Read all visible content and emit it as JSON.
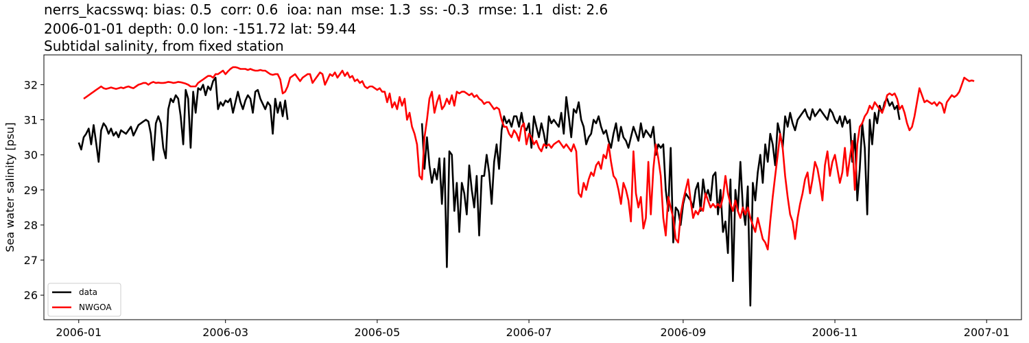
{
  "chart_data": {
    "type": "line",
    "title_lines": [
      "nerrs_kacsswq: bias: 0.5  corr: 0.6  ioa: nan  mse: 1.3  ss: -0.3  rmse: 1.1  dist: 2.6",
      "2006-01-01 depth: 0.0 lon: -151.72 lat: 59.44",
      "Subtidal salinity, from fixed station"
    ],
    "xlabel": "",
    "ylabel": "Sea water salinity [psu]",
    "xlim": [
      "2005-12-18",
      "2007-01-15"
    ],
    "ylim": [
      25.3,
      32.85
    ],
    "x_ticks": [
      "2006-01",
      "2006-03",
      "2006-05",
      "2006-07",
      "2006-09",
      "2006-11",
      "2007-01"
    ],
    "y_ticks": [
      26,
      27,
      28,
      29,
      30,
      31,
      32
    ],
    "grid": false,
    "legend_position": "lower-left",
    "series": [
      {
        "name": "data",
        "color": "#000000",
        "segments": [
          {
            "start": "2006-01-01",
            "values": [
              30.35,
              30.15,
              30.5,
              30.6,
              30.75,
              30.3,
              30.85,
              30.35,
              29.8,
              30.7,
              30.9,
              30.8,
              30.6,
              30.75,
              30.55,
              30.65,
              30.5,
              30.7,
              30.65,
              30.6,
              30.7,
              30.8,
              30.55,
              30.7,
              30.85,
              30.9,
              30.95,
              31.0,
              30.95,
              30.6,
              29.85,
              30.9,
              31.1,
              30.9,
              30.2,
              29.9,
              31.3,
              31.6,
              31.5,
              31.7,
              31.6,
              31.1,
              30.3,
              31.85,
              31.6,
              30.2,
              31.8,
              31.2,
              31.9,
              31.85,
              32.0,
              31.7,
              31.95,
              31.85,
              32.1,
              32.2,
              31.3,
              31.5,
              31.4,
              31.55,
              31.5,
              31.6,
              31.2,
              31.5,
              31.8,
              31.5,
              31.3,
              31.55,
              31.7,
              31.6,
              31.2,
              31.8,
              31.85,
              31.6,
              31.45,
              31.3,
              31.5,
              31.4,
              30.6,
              31.6,
              31.2,
              31.5,
              31.1,
              31.55,
              31.0
            ]
          },
          {
            "start": "2006-05-19",
            "values": [
              30.9,
              29.6,
              30.5,
              29.7,
              29.2,
              29.6,
              29.3,
              29.9,
              28.6,
              29.9,
              26.8,
              30.1,
              30.0,
              28.4,
              29.2,
              27.8,
              29.2,
              28.9,
              28.3,
              29.7,
              29.0,
              28.5,
              29.4,
              27.7,
              29.4,
              29.4,
              30.0,
              29.5,
              28.6,
              29.8,
              30.3,
              29.6,
              30.7,
              31.1,
              30.9,
              31.0,
              30.8,
              31.1,
              31.1,
              30.8,
              31.2,
              30.8,
              30.7,
              30.9,
              30.2,
              31.1,
              30.8,
              30.5,
              30.9,
              30.6,
              30.2,
              31.1,
              30.9,
              31.0,
              30.9,
              30.8,
              31.2,
              30.6,
              31.65,
              31.1,
              30.5,
              31.3,
              31.2,
              31.5,
              31.0,
              30.8,
              30.3,
              30.5,
              30.6,
              31.0,
              30.9,
              31.1,
              30.8,
              30.6,
              30.7,
              30.4,
              30.2,
              30.6,
              30.9,
              30.4,
              30.8,
              30.5,
              30.4,
              30.2,
              30.5,
              30.8,
              30.6,
              30.4,
              30.9,
              30.5,
              30.7,
              30.6,
              30.5,
              30.8,
              30.0,
              30.3,
              30.2,
              30.3,
              29.0,
              28.4,
              30.2,
              27.5,
              28.5,
              28.4,
              28.0,
              28.6,
              28.9,
              28.8,
              28.7,
              28.5,
              29.0,
              29.2,
              28.4,
              29.3,
              28.8,
              29.0,
              28.7,
              29.4,
              29.5,
              28.3,
              29.0,
              27.8,
              28.1,
              27.2,
              29.3,
              26.4,
              29.0,
              28.4,
              29.8,
              28.5,
              28.0,
              29.1,
              25.7,
              29.2,
              28.7,
              29.5,
              30.0,
              29.2,
              30.3,
              29.8,
              30.6,
              30.3,
              29.7,
              30.9,
              30.6,
              30.2,
              31.1,
              30.8,
              31.2,
              30.9,
              30.7,
              31.0,
              31.1,
              31.2,
              31.3,
              31.1,
              31.0,
              31.3,
              31.1,
              31.2,
              31.3,
              31.2,
              31.1,
              31.0,
              31.3,
              31.2,
              31.0,
              30.9,
              31.1,
              30.8,
              31.1,
              30.9,
              31.0,
              29.8,
              30.6,
              28.7,
              29.6,
              30.9,
              30.2,
              28.3,
              31.0,
              30.3,
              31.2,
              30.9,
              31.4,
              31.2,
              31.5,
              31.6,
              31.4,
              31.5,
              31.3,
              31.4,
              31.0
            ]
          }
        ]
      },
      {
        "name": "NWGOA",
        "color": "#ff0000",
        "segments": [
          {
            "start": "2006-01-03",
            "values": [
              31.6,
              31.65,
              31.7,
              31.75,
              31.8,
              31.85,
              31.9,
              31.95,
              31.9,
              31.88,
              31.9,
              31.92,
              31.9,
              31.88,
              31.9,
              31.92,
              31.9,
              31.93,
              31.95,
              31.92,
              31.9,
              31.95,
              32.0,
              32.02,
              32.05,
              32.05,
              32.0,
              32.05,
              32.08,
              32.05,
              32.06,
              32.05,
              32.05,
              32.06,
              32.08,
              32.07,
              32.05,
              32.06,
              32.08,
              32.07,
              32.05,
              32.03,
              32.0,
              31.95,
              31.95,
              31.95,
              32.05,
              32.1,
              32.15,
              32.2,
              32.25,
              32.25,
              32.2,
              32.3,
              32.3,
              32.35,
              32.4,
              32.3,
              32.38,
              32.45,
              32.5,
              32.5,
              32.48,
              32.45,
              32.45,
              32.45,
              32.42,
              32.45,
              32.42,
              32.4,
              32.4,
              32.42,
              32.4,
              32.4,
              32.35,
              32.3,
              32.28,
              32.3,
              32.3,
              32.15,
              31.75,
              31.8,
              31.95,
              32.2,
              32.25,
              32.3,
              32.2,
              32.1,
              32.2,
              32.25,
              32.3,
              32.3,
              32.05,
              32.15,
              32.25,
              32.35,
              32.3,
              32.0,
              32.15,
              32.3,
              32.25,
              32.35,
              32.2,
              32.3,
              32.4,
              32.25,
              32.35,
              32.2,
              32.25,
              32.1,
              32.15,
              32.05,
              32.1,
              31.95,
              31.9,
              31.95,
              31.95,
              31.9,
              31.85,
              31.9,
              31.8,
              31.8,
              31.5,
              31.75,
              31.35,
              31.5,
              31.3,
              31.65,
              31.4,
              31.6,
              31.0,
              31.2,
              30.8,
              30.6,
              30.3,
              29.4,
              29.3,
              30.5,
              31.0,
              31.6,
              31.8,
              31.2,
              31.5,
              31.7,
              31.3,
              31.4,
              31.6,
              31.45,
              31.7,
              31.4,
              31.8,
              31.75,
              31.8,
              31.8,
              31.75,
              31.7,
              31.75,
              31.65,
              31.7,
              31.6,
              31.55,
              31.45,
              31.5,
              31.5,
              31.4,
              31.3,
              31.35,
              31.3,
              31.0,
              30.8,
              30.8,
              30.6,
              30.5,
              30.7,
              30.6,
              30.4,
              30.8,
              30.9,
              30.3,
              30.6,
              30.5,
              30.3,
              30.4,
              30.2,
              30.1,
              30.3,
              30.25,
              30.3,
              30.2,
              30.3,
              30.35,
              30.4,
              30.3,
              30.2,
              30.3,
              30.2,
              30.1,
              30.3,
              30.1,
              28.9,
              28.8,
              29.2,
              29.0,
              29.3,
              29.5,
              29.4,
              29.7,
              29.8,
              29.6,
              30.0,
              29.9,
              30.3,
              29.8,
              29.4,
              29.3,
              29.0,
              28.6,
              29.2,
              29.0,
              28.7,
              28.1,
              30.1,
              28.9,
              28.5,
              28.8,
              27.9,
              28.2,
              29.8,
              28.3,
              29.6,
              30.3,
              29.9,
              29.4,
              28.2,
              27.7,
              28.8,
              28.5,
              28.2,
              27.6,
              27.5,
              28.3,
              28.7,
              29.0,
              29.3,
              28.7,
              28.2,
              28.4,
              28.3,
              28.5,
              28.4,
              28.9,
              28.7,
              28.5,
              28.6,
              28.5,
              28.6,
              28.5,
              28.8,
              29.4,
              28.9,
              28.6,
              28.4,
              28.7,
              28.4,
              28.2,
              28.5,
              28.3,
              28.5,
              28.2,
              28.0,
              27.8,
              28.2,
              27.9,
              27.6,
              27.5,
              27.3,
              28.1,
              28.8,
              29.4,
              30.0,
              30.6,
              30.2,
              29.4,
              28.8,
              28.3,
              28.1,
              27.6,
              28.2,
              28.6,
              28.9,
              29.3,
              29.5,
              28.9,
              29.3,
              29.8,
              29.6,
              29.2,
              28.7,
              29.7,
              30.1,
              29.4,
              29.8,
              30.0,
              29.6,
              29.2,
              29.5,
              30.2,
              29.4,
              29.9,
              30.4,
              29.0,
              30.3,
              30.8,
              30.9,
              31.1,
              31.2,
              31.4,
              31.3,
              31.5,
              31.4,
              31.3,
              31.2,
              31.4,
              31.7,
              31.75,
              31.7,
              31.75,
              31.6,
              31.3,
              31.4,
              31.2,
              30.9,
              30.7,
              30.8,
              31.1,
              31.5,
              31.9,
              31.7,
              31.5,
              31.55,
              31.5,
              31.45,
              31.5,
              31.4,
              31.5,
              31.45,
              31.2,
              31.5,
              31.6,
              31.7,
              31.65,
              31.7,
              31.8,
              32.0,
              32.2,
              32.15,
              32.1,
              32.12,
              32.1
            ]
          }
        ]
      }
    ]
  }
}
